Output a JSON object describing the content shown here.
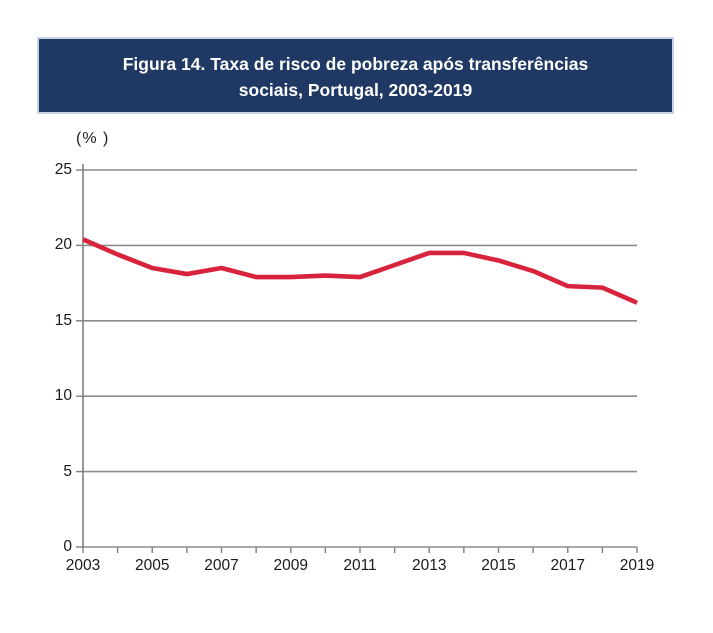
{
  "figure": {
    "title_line1": "Figura 14. Taxa de risco de pobreza após transferências",
    "title_line2": "sociais, Portugal, 2003-2019",
    "unit_label": "(% )"
  },
  "colors": {
    "title_bg": "#1F3864",
    "title_text": "#FFFFFF",
    "title_border": "#C9D2E4",
    "line": "#D8233C",
    "grid": "#8C8C8C",
    "axis": "#7F7F7F",
    "tick_text": "#1A1A1A"
  },
  "chart_data": {
    "type": "line",
    "title": "Figura 14. Taxa de risco de pobreza após transferências sociais, Portugal, 2003-2019",
    "xlabel": "",
    "ylabel": "(%)",
    "x": [
      2003,
      2004,
      2005,
      2006,
      2007,
      2008,
      2009,
      2010,
      2011,
      2012,
      2013,
      2014,
      2015,
      2016,
      2017,
      2018,
      2019
    ],
    "series": [
      {
        "name": "Taxa de risco de pobreza após transferências sociais",
        "values": [
          20.4,
          19.4,
          18.5,
          18.1,
          18.5,
          17.9,
          17.9,
          18.0,
          17.9,
          18.7,
          19.5,
          19.5,
          19.0,
          18.3,
          17.3,
          17.2,
          16.2
        ]
      }
    ],
    "ylim": [
      0,
      25
    ],
    "y_ticks": [
      25,
      20,
      15,
      10,
      5,
      0
    ],
    "x_tick_labels": [
      "2003",
      "2005",
      "2007",
      "2009",
      "2011",
      "2013",
      "2015",
      "2017",
      "2019"
    ],
    "grid": true,
    "legend": "none"
  }
}
